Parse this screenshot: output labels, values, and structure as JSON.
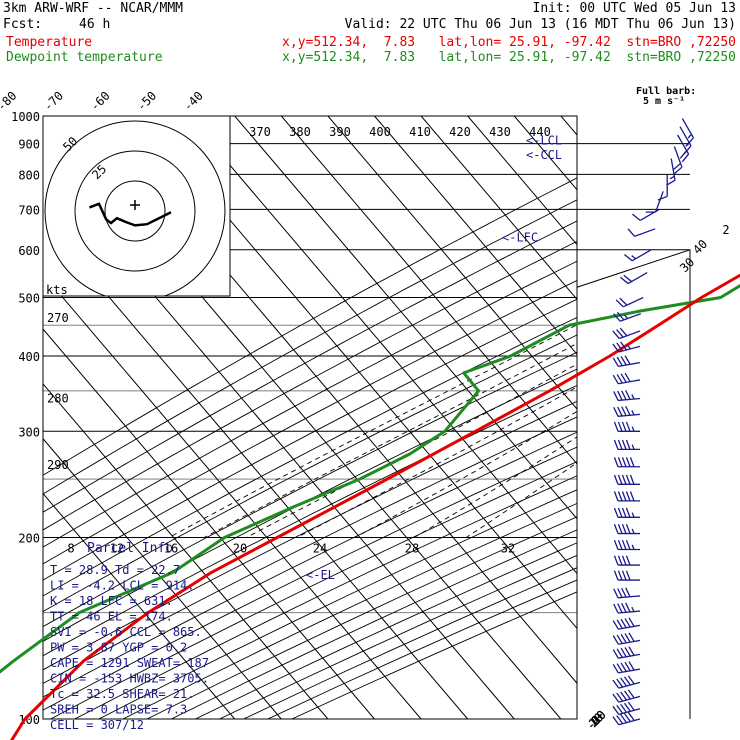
{
  "header": {
    "model": "3km ARW-WRF -- NCAR/MMM",
    "init": "Init: 00 UTC Wed 05 Jun 13",
    "fcst_label": "Fcst:",
    "fcst_value": "46 h",
    "valid": "Valid: 22 UTC Thu 06 Jun 13 (16 MDT Thu 06 Jun 13)",
    "temp_label": "Temperature",
    "temp_loc": "x,y=512.34,  7.83   lat,lon= 25.91, -97.42  stn=BRO ,72250",
    "dew_label": "Dewpoint temperature",
    "dew_loc": "x,y=512.34,  7.83   lat,lon= 25.91, -97.42  stn=BRO ,72250"
  },
  "colors": {
    "temperature": "#e60000",
    "dewpoint": "#1e8c1e",
    "wind": "#1a1a8c",
    "grid": "#000000"
  },
  "wind_key": {
    "line1": "Full barb:",
    "line2": "5 m s⁻¹"
  },
  "hodograph": {
    "units": "kts",
    "ring_labels": [
      "25",
      "50"
    ]
  },
  "parcel": {
    "title": "Parcel Info",
    "rows": [
      "T  =   28.9  Td =  22.7",
      "LI =   -4.2  LCL =  914.",
      "K  =     18  LFC = 631.",
      "TT =     46  EL  =  174.",
      "SVI =  -0.6  CCL =  865.",
      "PW =   3.87  YGP =   0.2",
      "CAPE =  1291  SWEAT=  187",
      "CIN =   -153  HWBZ= 3705.",
      "Tc =   32.5  SHEAR=  21.",
      "SREH =     0  LAPSE=  7.3",
      "CELL = 307/12"
    ]
  },
  "chart_data": {
    "type": "line",
    "title": "",
    "xlabel": "",
    "ylabel": "",
    "y_scale": "log-pressure (hPa)",
    "pressure_ticks": [
      "100",
      "200",
      "300",
      "400",
      "500",
      "600",
      "700",
      "800",
      "900",
      "1000"
    ],
    "isotherm_labels": [
      "-80",
      "-70",
      "-60",
      "-50",
      "-40",
      "-30",
      "-20",
      "-10",
      "0",
      "10",
      "20",
      "30",
      "40"
    ],
    "theta_e_labels": [
      "370",
      "380",
      "390",
      "400",
      "410",
      "420",
      "430",
      "440"
    ],
    "mixing_ratio_labels_upper": [
      "8",
      "12",
      "16",
      "20",
      "24",
      "28",
      "32"
    ],
    "mixing_ratio_labels_lower": [
      "2",
      "3",
      "5",
      "8",
      "12",
      "20"
    ],
    "theta_labels": [
      "290",
      "280",
      "270"
    ],
    "level_markers": [
      {
        "label": "<-EL",
        "p": 174
      },
      {
        "label": "<-LFC",
        "p": 631
      },
      {
        "label": "<-CCL",
        "p": 865
      },
      {
        "label": "<-LCL",
        "p": 914
      }
    ],
    "series": [
      {
        "name": "Temperature",
        "points": [
          [
            1000,
            28.9
          ],
          [
            975,
            24.5
          ],
          [
            950,
            22.0
          ],
          [
            925,
            21.0
          ],
          [
            900,
            21.6
          ],
          [
            875,
            20.2
          ],
          [
            850,
            18.6
          ],
          [
            800,
            15.3
          ],
          [
            750,
            12.6
          ],
          [
            700,
            9.8
          ],
          [
            650,
            5.9
          ],
          [
            600,
            2.3
          ],
          [
            550,
            -2.0
          ],
          [
            500,
            -6.7
          ],
          [
            450,
            -10.9
          ],
          [
            400,
            -15.7
          ],
          [
            350,
            -22.3
          ],
          [
            300,
            -30.8
          ],
          [
            250,
            -41.0
          ],
          [
            200,
            -54.0
          ],
          [
            175,
            -61.7
          ],
          [
            150,
            -68.0
          ],
          [
            125,
            -73.0
          ],
          [
            100,
            -75.0
          ],
          [
            90,
            -73.7
          ]
        ]
      },
      {
        "name": "Dewpoint temperature",
        "points": [
          [
            1000,
            22.7
          ],
          [
            975,
            22.3
          ],
          [
            950,
            21.7
          ],
          [
            925,
            20.0
          ],
          [
            900,
            19.5
          ],
          [
            875,
            17.9
          ],
          [
            850,
            14.0
          ],
          [
            800,
            9.0
          ],
          [
            750,
            3.6
          ],
          [
            700,
            -2.1
          ],
          [
            650,
            -3.3
          ],
          [
            600,
            -4.3
          ],
          [
            550,
            1.7
          ],
          [
            500,
            -2.6
          ],
          [
            475,
            -17.4
          ],
          [
            450,
            -30.0
          ],
          [
            400,
            -37.0
          ],
          [
            375,
            -44.0
          ],
          [
            350,
            -37.5
          ],
          [
            300,
            -37.4
          ],
          [
            275,
            -40.8
          ],
          [
            250,
            -46.9
          ],
          [
            225,
            -56.0
          ],
          [
            200,
            -65.3
          ],
          [
            175,
            -70.0
          ],
          [
            150,
            -82.8
          ],
          [
            125,
            -88.0
          ],
          [
            110,
            -91.0
          ],
          [
            100,
            -91.0
          ],
          [
            90,
            -88.8
          ]
        ]
      }
    ],
    "hodograph_points": [
      [
        -3.8,
        -0.3
      ],
      [
        -3.0,
        -0.6
      ],
      [
        -2.4,
        0.7
      ],
      [
        -2.0,
        1.0
      ],
      [
        -1.5,
        0.6
      ],
      [
        -0.8,
        0.9
      ],
      [
        0,
        1.2
      ],
      [
        1.0,
        1.1
      ],
      [
        2.0,
        0.6
      ],
      [
        3.0,
        0.1
      ]
    ],
    "winds": [
      {
        "p": 990,
        "spd": 3,
        "dir": 150
      },
      {
        "p": 960,
        "spd": 3,
        "dir": 150
      },
      {
        "p": 930,
        "spd": 4,
        "dir": 150
      },
      {
        "p": 890,
        "spd": 4,
        "dir": 160
      },
      {
        "p": 850,
        "spd": 3,
        "dir": 170
      },
      {
        "p": 800,
        "spd": 2,
        "dir": 180
      },
      {
        "p": 750,
        "spd": 2,
        "dir": 200
      },
      {
        "p": 700,
        "spd": 2,
        "dir": 240
      },
      {
        "p": 650,
        "spd": 2,
        "dir": 250
      },
      {
        "p": 600,
        "spd": 3,
        "dir": 240
      },
      {
        "p": 550,
        "spd": 4,
        "dir": 240
      },
      {
        "p": 500,
        "spd": 4,
        "dir": 245
      },
      {
        "p": 470,
        "spd": 5,
        "dir": 250
      },
      {
        "p": 440,
        "spd": 6,
        "dir": 250
      },
      {
        "p": 415,
        "spd": 7,
        "dir": 255
      },
      {
        "p": 390,
        "spd": 8,
        "dir": 260
      },
      {
        "p": 365,
        "spd": 8,
        "dir": 260
      },
      {
        "p": 340,
        "spd": 9,
        "dir": 265
      },
      {
        "p": 320,
        "spd": 9,
        "dir": 265
      },
      {
        "p": 300,
        "spd": 9,
        "dir": 270
      },
      {
        "p": 280,
        "spd": 9,
        "dir": 270
      },
      {
        "p": 262,
        "spd": 10,
        "dir": 270
      },
      {
        "p": 245,
        "spd": 10,
        "dir": 270
      },
      {
        "p": 230,
        "spd": 10,
        "dir": 270
      },
      {
        "p": 216,
        "spd": 9,
        "dir": 270
      },
      {
        "p": 203,
        "spd": 9,
        "dir": 270
      },
      {
        "p": 191,
        "spd": 9,
        "dir": 270
      },
      {
        "p": 180,
        "spd": 8,
        "dir": 270
      },
      {
        "p": 170,
        "spd": 8,
        "dir": 270
      },
      {
        "p": 160,
        "spd": 8,
        "dir": 265
      },
      {
        "p": 151,
        "spd": 9,
        "dir": 265
      },
      {
        "p": 143,
        "spd": 10,
        "dir": 260
      },
      {
        "p": 135,
        "spd": 11,
        "dir": 260
      },
      {
        "p": 128,
        "spd": 12,
        "dir": 260
      },
      {
        "p": 121,
        "spd": 13,
        "dir": 260
      },
      {
        "p": 115,
        "spd": 14,
        "dir": 255
      },
      {
        "p": 109,
        "spd": 15,
        "dir": 255
      },
      {
        "p": 104,
        "spd": 15,
        "dir": 255
      },
      {
        "p": 100,
        "spd": 15,
        "dir": 255
      }
    ]
  }
}
